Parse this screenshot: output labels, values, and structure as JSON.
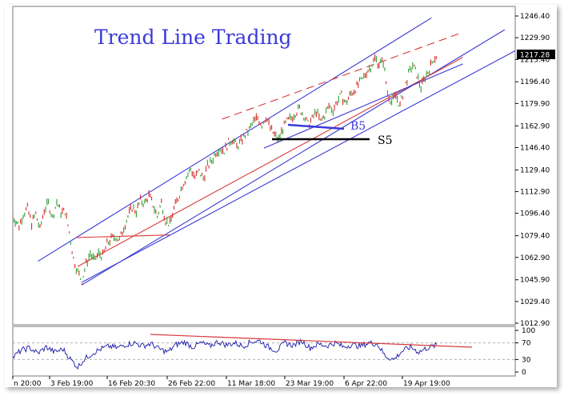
{
  "chart_data": {
    "type": "line",
    "title": "Trend Line Trading",
    "price_axis": {
      "ticks": [
        "1246.40",
        "1229.90",
        "1213.40",
        "1196.40",
        "1179.90",
        "1162.90",
        "1146.40",
        "1129.40",
        "1112.90",
        "1096.40",
        "1079.40",
        "1062.90",
        "1045.90",
        "1029.40",
        "1012.90"
      ],
      "ylim": [
        1012.9,
        1246.4
      ],
      "current_price": "1217.28"
    },
    "rsi_axis": {
      "ticks": [
        "100",
        "70",
        "30",
        "0"
      ],
      "ylim": [
        0,
        100
      ],
      "levels": [
        70,
        30
      ]
    },
    "x_ticks": [
      "n 20:00",
      "3 Feb 19:00",
      "16 Feb 20:30",
      "26 Feb 22:00",
      "11 Mar 18:00",
      "23 Mar 19:00",
      "6 Apr 22:00",
      "19 Apr 19:00"
    ],
    "annotations": [
      {
        "label": "B5",
        "value": 1162.9,
        "color": "#3a3ad8"
      },
      {
        "label": "S5",
        "value": 1152.0,
        "color": "#000000"
      }
    ],
    "price_path": [
      [
        0,
        1094
      ],
      [
        3,
        1087
      ],
      [
        5,
        1096
      ],
      [
        7,
        1100
      ],
      [
        9,
        1089
      ],
      [
        11,
        1096
      ],
      [
        13,
        1084
      ],
      [
        15,
        1099
      ],
      [
        17,
        1104
      ],
      [
        19,
        1093
      ],
      [
        21,
        1105
      ],
      [
        23,
        1097
      ],
      [
        25,
        1098
      ],
      [
        27,
        1082
      ],
      [
        29,
        1062
      ],
      [
        31,
        1052
      ],
      [
        33,
        1045
      ],
      [
        35,
        1058
      ],
      [
        37,
        1066
      ],
      [
        39,
        1060
      ],
      [
        41,
        1066
      ],
      [
        43,
        1064
      ],
      [
        45,
        1073
      ],
      [
        47,
        1077
      ],
      [
        49,
        1079
      ],
      [
        51,
        1076
      ],
      [
        53,
        1086
      ],
      [
        55,
        1094
      ],
      [
        57,
        1101
      ],
      [
        59,
        1098
      ],
      [
        61,
        1106
      ],
      [
        63,
        1104
      ],
      [
        65,
        1110
      ],
      [
        67,
        1103
      ],
      [
        69,
        1094
      ],
      [
        71,
        1105
      ],
      [
        73,
        1091
      ],
      [
        75,
        1088
      ],
      [
        77,
        1100
      ],
      [
        79,
        1108
      ],
      [
        81,
        1118
      ],
      [
        83,
        1124
      ],
      [
        85,
        1130
      ],
      [
        87,
        1124
      ],
      [
        89,
        1128
      ],
      [
        91,
        1123
      ],
      [
        93,
        1132
      ],
      [
        95,
        1136
      ],
      [
        97,
        1143
      ],
      [
        99,
        1146
      ],
      [
        101,
        1144
      ],
      [
        103,
        1150
      ],
      [
        105,
        1153
      ],
      [
        107,
        1147
      ],
      [
        109,
        1151
      ],
      [
        111,
        1156
      ],
      [
        113,
        1160
      ],
      [
        115,
        1166
      ],
      [
        117,
        1169
      ],
      [
        119,
        1164
      ],
      [
        121,
        1170
      ],
      [
        123,
        1161
      ],
      [
        125,
        1156
      ],
      [
        127,
        1152
      ],
      [
        129,
        1161
      ],
      [
        131,
        1166
      ],
      [
        133,
        1169
      ],
      [
        135,
        1173
      ],
      [
        137,
        1176
      ],
      [
        139,
        1171
      ],
      [
        141,
        1164
      ],
      [
        143,
        1168
      ],
      [
        145,
        1174
      ],
      [
        147,
        1166
      ],
      [
        149,
        1171
      ],
      [
        151,
        1178
      ],
      [
        153,
        1175
      ],
      [
        155,
        1182
      ],
      [
        157,
        1186
      ],
      [
        159,
        1180
      ],
      [
        161,
        1186
      ],
      [
        163,
        1190
      ],
      [
        165,
        1194
      ],
      [
        167,
        1198
      ],
      [
        169,
        1204
      ],
      [
        171,
        1208
      ],
      [
        173,
        1214
      ],
      [
        175,
        1210
      ],
      [
        177,
        1212
      ],
      [
        179,
        1188
      ],
      [
        181,
        1181
      ],
      [
        183,
        1186
      ],
      [
        185,
        1178
      ],
      [
        187,
        1191
      ],
      [
        189,
        1202
      ],
      [
        191,
        1209
      ],
      [
        193,
        1202
      ],
      [
        195,
        1192
      ],
      [
        197,
        1200
      ],
      [
        199,
        1206
      ],
      [
        201,
        1214
      ],
      [
        203,
        1217
      ]
    ],
    "rsi_path": [
      [
        0,
        35
      ],
      [
        4,
        52
      ],
      [
        8,
        58
      ],
      [
        12,
        45
      ],
      [
        16,
        60
      ],
      [
        20,
        48
      ],
      [
        24,
        55
      ],
      [
        28,
        28
      ],
      [
        31,
        12
      ],
      [
        34,
        30
      ],
      [
        38,
        45
      ],
      [
        42,
        55
      ],
      [
        46,
        62
      ],
      [
        50,
        58
      ],
      [
        54,
        66
      ],
      [
        58,
        70
      ],
      [
        62,
        63
      ],
      [
        66,
        68
      ],
      [
        70,
        55
      ],
      [
        74,
        48
      ],
      [
        78,
        66
      ],
      [
        82,
        72
      ],
      [
        86,
        60
      ],
      [
        90,
        70
      ],
      [
        94,
        62
      ],
      [
        98,
        73
      ],
      [
        102,
        65
      ],
      [
        106,
        70
      ],
      [
        110,
        62
      ],
      [
        114,
        73
      ],
      [
        118,
        75
      ],
      [
        122,
        60
      ],
      [
        126,
        52
      ],
      [
        130,
        70
      ],
      [
        134,
        64
      ],
      [
        138,
        75
      ],
      [
        142,
        58
      ],
      [
        146,
        67
      ],
      [
        150,
        63
      ],
      [
        154,
        70
      ],
      [
        158,
        60
      ],
      [
        162,
        66
      ],
      [
        166,
        62
      ],
      [
        170,
        70
      ],
      [
        174,
        68
      ],
      [
        178,
        38
      ],
      [
        182,
        30
      ],
      [
        186,
        50
      ],
      [
        190,
        60
      ],
      [
        194,
        48
      ],
      [
        198,
        58
      ],
      [
        203,
        65
      ]
    ],
    "price_trendlines": [
      {
        "color": "#3a3ad8",
        "from": [
          12,
          1060
        ],
        "to": [
          200,
          1245
        ],
        "note": "upper channel outer"
      },
      {
        "color": "#3a3ad8",
        "from": [
          33,
          1042
        ],
        "to": [
          235,
          1236
        ],
        "note": "channel main upper"
      },
      {
        "color": "#3a3ad8",
        "from": [
          33,
          1044
        ],
        "to": [
          240,
          1220
        ],
        "note": "lower channel"
      },
      {
        "color": "#d83a3a",
        "from": [
          31,
          1056
        ],
        "to": [
          215,
          1215
        ],
        "note": "red support"
      },
      {
        "color": "#d83a3a",
        "from": [
          30,
          1078
        ],
        "to": [
          75,
          1080
        ],
        "note": "red horizontal"
      },
      {
        "color": "#d83a3a",
        "from": [
          100,
          1168
        ],
        "to": [
          215,
          1234
        ],
        "note": "red dashed upper"
      },
      {
        "color": "#3a3ad8",
        "from": [
          120,
          1146
        ],
        "to": [
          215,
          1210
        ],
        "note": "blue lower channel 2"
      }
    ]
  }
}
